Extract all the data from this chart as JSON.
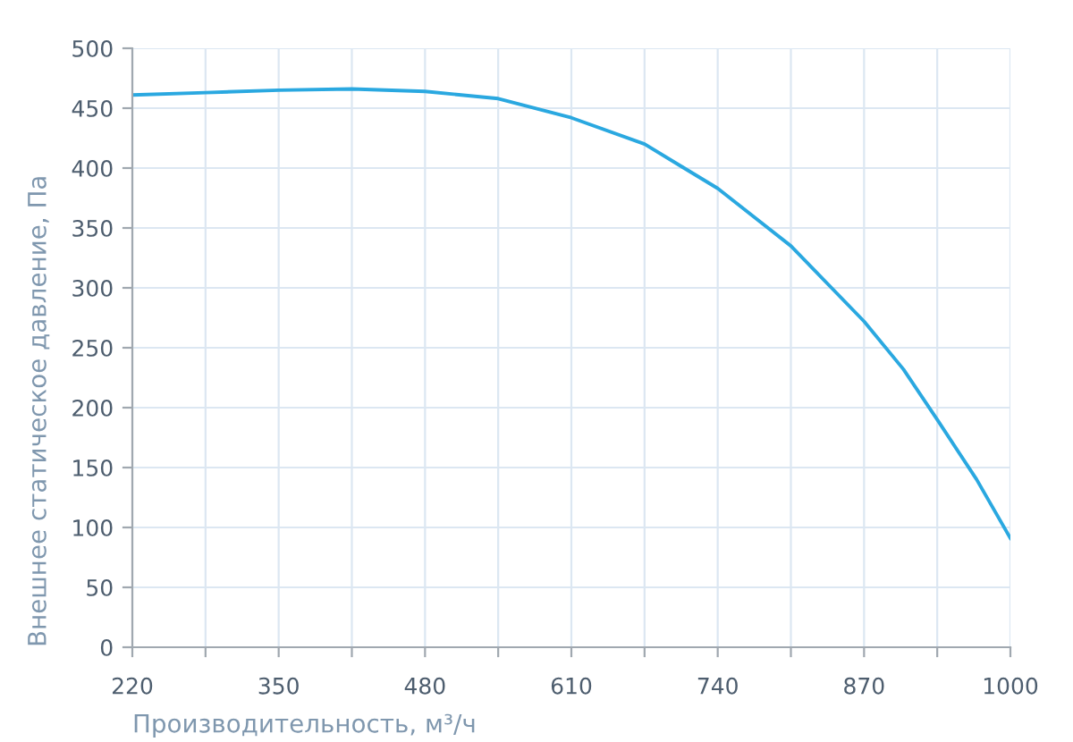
{
  "chart_data": {
    "type": "line",
    "xlabel": "Производительность, м³/ч",
    "ylabel": "Внешнее статическое давление, Па",
    "series": [
      {
        "color": "#2aa8e0",
        "x": [
          220,
          285,
          350,
          415,
          480,
          545,
          610,
          675,
          740,
          805,
          870,
          905,
          935,
          970,
          1000
        ],
        "values": [
          461,
          463,
          465,
          466,
          464,
          458,
          442,
          420,
          383,
          335,
          272,
          232,
          190,
          140,
          91
        ]
      }
    ],
    "xlim": [
      220,
      1000
    ],
    "xticks": [
      220,
      {
        "value": 285,
        "label": null
      },
      350,
      {
        "value": 415,
        "label": null
      },
      480,
      {
        "value": 545,
        "label": null
      },
      610,
      {
        "value": 675,
        "label": null
      },
      740,
      {
        "value": 805,
        "label": null
      },
      870,
      {
        "value": 935,
        "label": null
      },
      1000
    ],
    "ylim": [
      0,
      500
    ],
    "yticks": [
      0,
      50,
      100,
      150,
      200,
      250,
      300,
      350,
      400,
      450,
      500
    ],
    "grid": true,
    "marker": "none",
    "line_style": "solid"
  }
}
